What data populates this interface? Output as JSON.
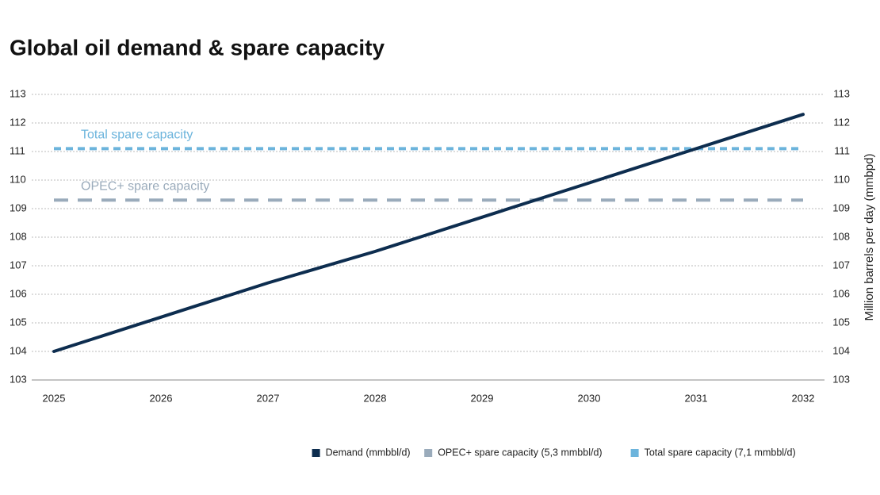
{
  "chart_data": {
    "type": "line",
    "title": "Global oil demand & spare capacity",
    "categories": [
      "2025",
      "2026",
      "2027",
      "2028",
      "2029",
      "2030",
      "2031",
      "2032"
    ],
    "series": [
      {
        "name": "Demand (mmbbl/d)",
        "color": "#0d2d4f",
        "style": "solid",
        "values": [
          104.0,
          105.2,
          106.4,
          107.5,
          108.7,
          109.9,
          111.1,
          112.3
        ]
      },
      {
        "name": "OPEC+ spare capacity (5,3 mmbbl/d)",
        "color": "#9aabbb",
        "style": "dashed",
        "annotation": "OPEC+ spare capacity",
        "values": [
          109.3,
          109.3,
          109.3,
          109.3,
          109.3,
          109.3,
          109.3,
          109.3
        ]
      },
      {
        "name": "Total spare capacity (7,1 mmbbl/d)",
        "color": "#6cb4dc",
        "style": "dotted",
        "annotation": "Total spare capacity",
        "values": [
          111.1,
          111.1,
          111.1,
          111.1,
          111.1,
          111.1,
          111.1,
          111.1
        ]
      }
    ],
    "ylim": [
      103,
      113
    ],
    "yticks": [
      103,
      104,
      105,
      106,
      107,
      108,
      109,
      110,
      111,
      112,
      113
    ],
    "y2lim": [
      103,
      113
    ],
    "y2ticks": [
      103,
      104,
      105,
      106,
      107,
      108,
      109,
      110,
      111,
      112,
      113
    ],
    "y2_label": "Million barrels per day (mmbpd)",
    "grid": true,
    "legend": "bottom-right"
  }
}
